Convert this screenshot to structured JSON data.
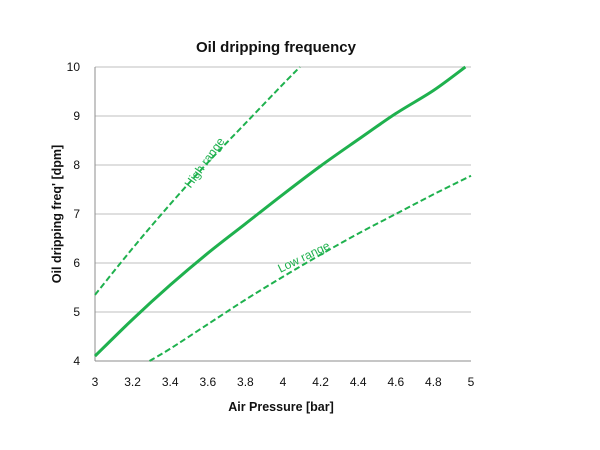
{
  "chart_data": {
    "type": "line",
    "title": "Oil dripping frequency",
    "xlabel": "Air Pressure [bar]",
    "ylabel": "Oil dripping freq' [dpm]",
    "xlim": [
      3,
      5
    ],
    "ylim": [
      4,
      10
    ],
    "x_ticks": [
      "3",
      "3.2",
      "3.4",
      "3.6",
      "3.8",
      "4",
      "4.2",
      "4.4",
      "4.6",
      "4.8",
      "5"
    ],
    "x_tick_values": [
      3,
      3.2,
      3.4,
      3.6,
      3.8,
      4,
      4.2,
      4.4,
      4.6,
      4.8,
      5
    ],
    "y_ticks": [
      "4",
      "5",
      "6",
      "7",
      "8",
      "9",
      "10"
    ],
    "y_tick_values": [
      4,
      5,
      6,
      7,
      8,
      9,
      10
    ],
    "grid": "horizontal",
    "legend": "none",
    "series_color": "#1fb14e",
    "series": [
      {
        "style": "dashed",
        "x": [
          3.0,
          3.2,
          3.4,
          3.6,
          3.8,
          4.0,
          4.09
        ],
        "y": [
          5.35,
          6.3,
          7.2,
          8.05,
          8.85,
          9.65,
          10.0
        ]
      },
      {
        "style": "solid",
        "x": [
          3.0,
          3.2,
          3.4,
          3.6,
          3.8,
          4.0,
          4.2,
          4.4,
          4.6,
          4.8,
          4.97
        ],
        "y": [
          4.1,
          4.85,
          5.55,
          6.2,
          6.8,
          7.4,
          7.98,
          8.52,
          9.05,
          9.52,
          10.0
        ]
      },
      {
        "style": "dashed",
        "x": [
          3.29,
          3.4,
          3.6,
          3.8,
          4.0,
          4.2,
          4.4,
          4.6,
          4.8,
          5.0
        ],
        "y": [
          4.0,
          4.25,
          4.75,
          5.25,
          5.72,
          6.17,
          6.6,
          7.0,
          7.4,
          7.78
        ]
      }
    ],
    "annotations": [
      {
        "text": "High range",
        "x": 3.6,
        "y": 8.0
      },
      {
        "text": "Low range",
        "x": 4.12,
        "y": 6.05
      }
    ]
  }
}
